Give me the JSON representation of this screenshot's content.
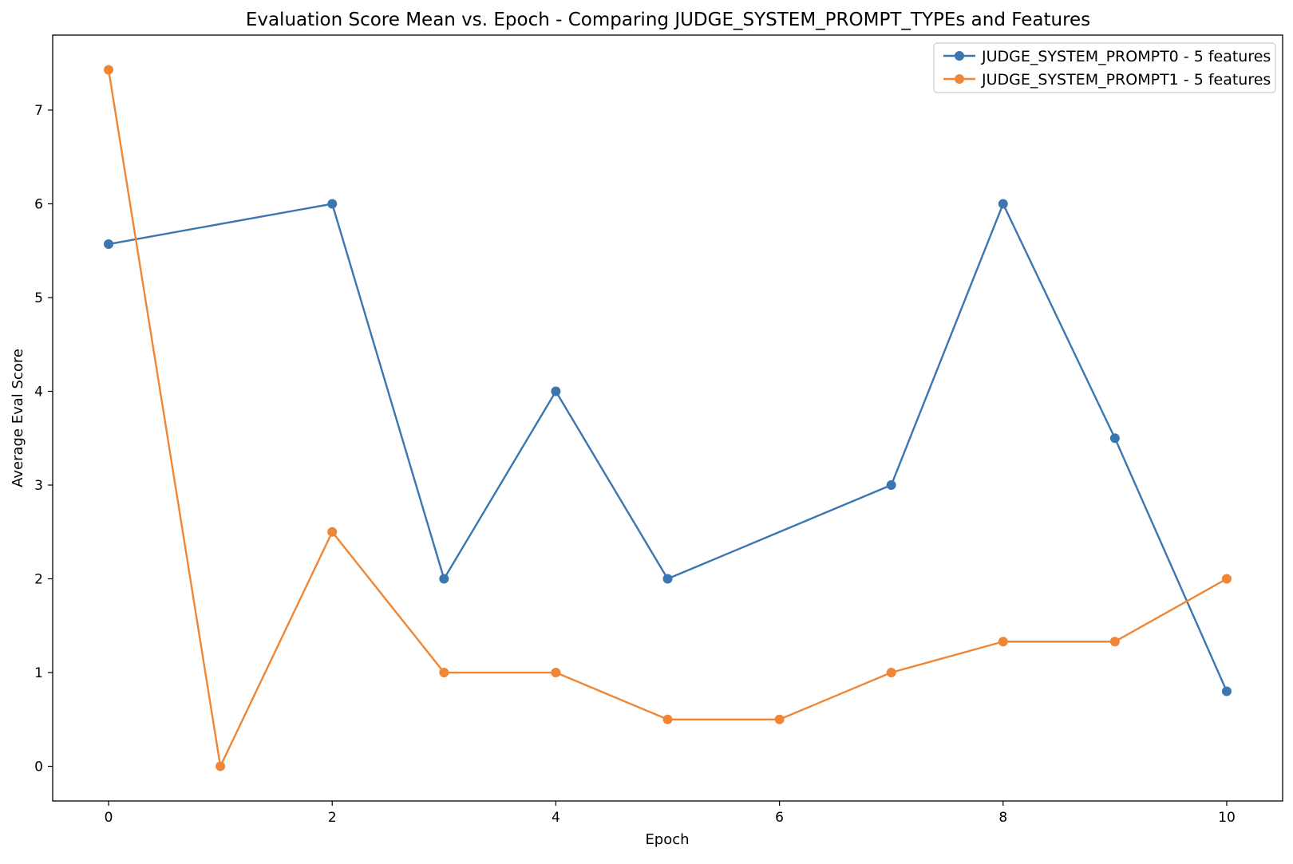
{
  "chart_data": {
    "type": "line",
    "title": "Evaluation Score Mean vs. Epoch - Comparing JUDGE_SYSTEM_PROMPT_TYPEs and Features",
    "xlabel": "Epoch",
    "ylabel": "Average Eval Score",
    "xlim": [
      -0.5,
      10.5
    ],
    "ylim": [
      -0.37,
      7.8
    ],
    "xticks": [
      "0",
      "2",
      "4",
      "6",
      "8",
      "10"
    ],
    "yticks": [
      "0",
      "1",
      "2",
      "3",
      "4",
      "5",
      "6",
      "7"
    ],
    "grid": false,
    "legend_position": "top-right",
    "series": [
      {
        "name": "JUDGE_SYSTEM_PROMPT0 - 5 features",
        "color": "#3a76af",
        "x": [
          0,
          2,
          3,
          4,
          5,
          7,
          8,
          9,
          10
        ],
        "y": [
          5.57,
          6.0,
          2.0,
          4.0,
          2.0,
          3.0,
          6.0,
          3.5,
          0.8
        ]
      },
      {
        "name": "JUDGE_SYSTEM_PROMPT1 - 5 features",
        "color": "#ef8636",
        "x": [
          0,
          1,
          2,
          3,
          4,
          5,
          6,
          7,
          8,
          9,
          10
        ],
        "y": [
          7.43,
          0.0,
          2.5,
          1.0,
          1.0,
          0.5,
          0.5,
          1.0,
          1.33,
          1.33,
          2.0
        ]
      }
    ]
  }
}
